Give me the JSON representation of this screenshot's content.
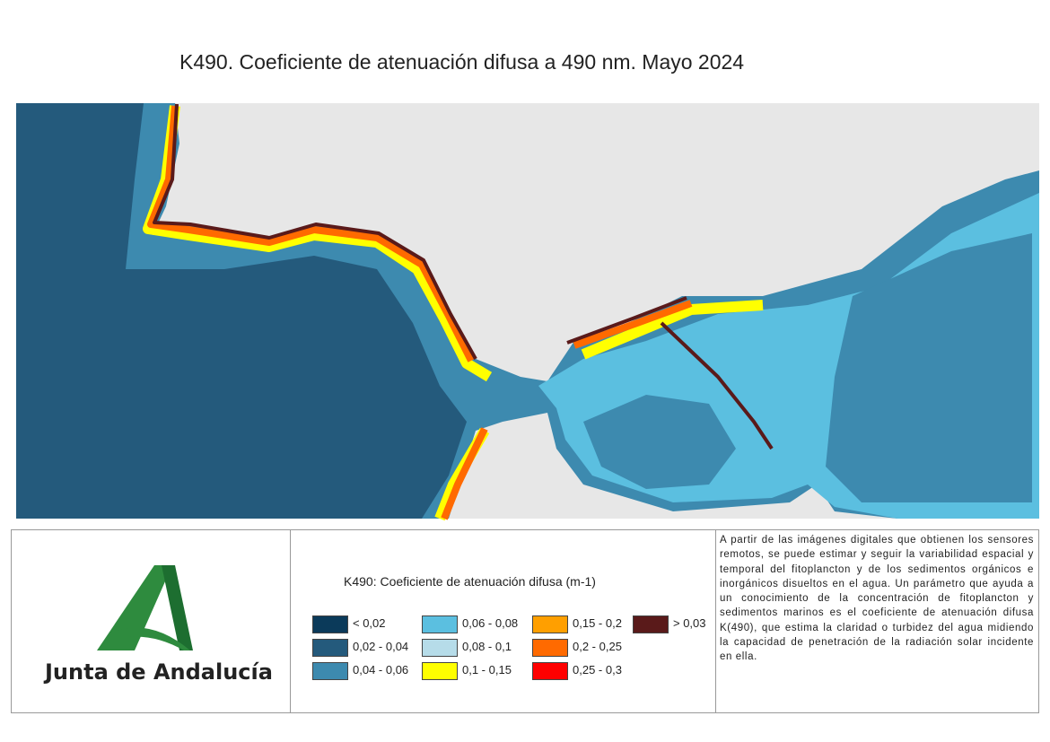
{
  "title": "K490. Coeficiente de atenuación difusa a 490 nm. Mayo 2024",
  "legend": {
    "title": "K490: Coeficiente de atenuación difusa (m-1)",
    "items": [
      {
        "label": "< 0,02",
        "color": "#0b3a5a"
      },
      {
        "label": "0,02 - 0,04",
        "color": "#245a7c"
      },
      {
        "label": "0,04 - 0,06",
        "color": "#3d8aaf"
      },
      {
        "label": "0,06 - 0,08",
        "color": "#5bbfe0"
      },
      {
        "label": "0,08 - 0,1",
        "color": "#b6dce9"
      },
      {
        "label": "0,1 - 0,15",
        "color": "#ffff00"
      },
      {
        "label": "0,15 - 0,2",
        "color": "#ff9f00"
      },
      {
        "label": "0,2 - 0,25",
        "color": "#ff6a00"
      },
      {
        "label": "0,25 - 0,3",
        "color": "#ff0000"
      },
      {
        "label": "> 0,03",
        "color": "#5a1a1a"
      }
    ]
  },
  "description": "A partir de las imágenes digitales que obtienen los sensores remotos, se puede estimar y seguir la variabilidad espacial y temporal del fitoplancton y de los sedimentos orgánicos e inorgánicos disueltos en el agua. Un parámetro que ayuda a un conocimiento de la concentración de fitoplancton y sedimentos marinos es el coeficiente de atenuación difusa K(490), que estima la claridad o turbidez del agua midiendo la capacidad de penetración de la radiación solar incidente en ella.",
  "logo": {
    "text": "Junta de Andalucía"
  }
}
